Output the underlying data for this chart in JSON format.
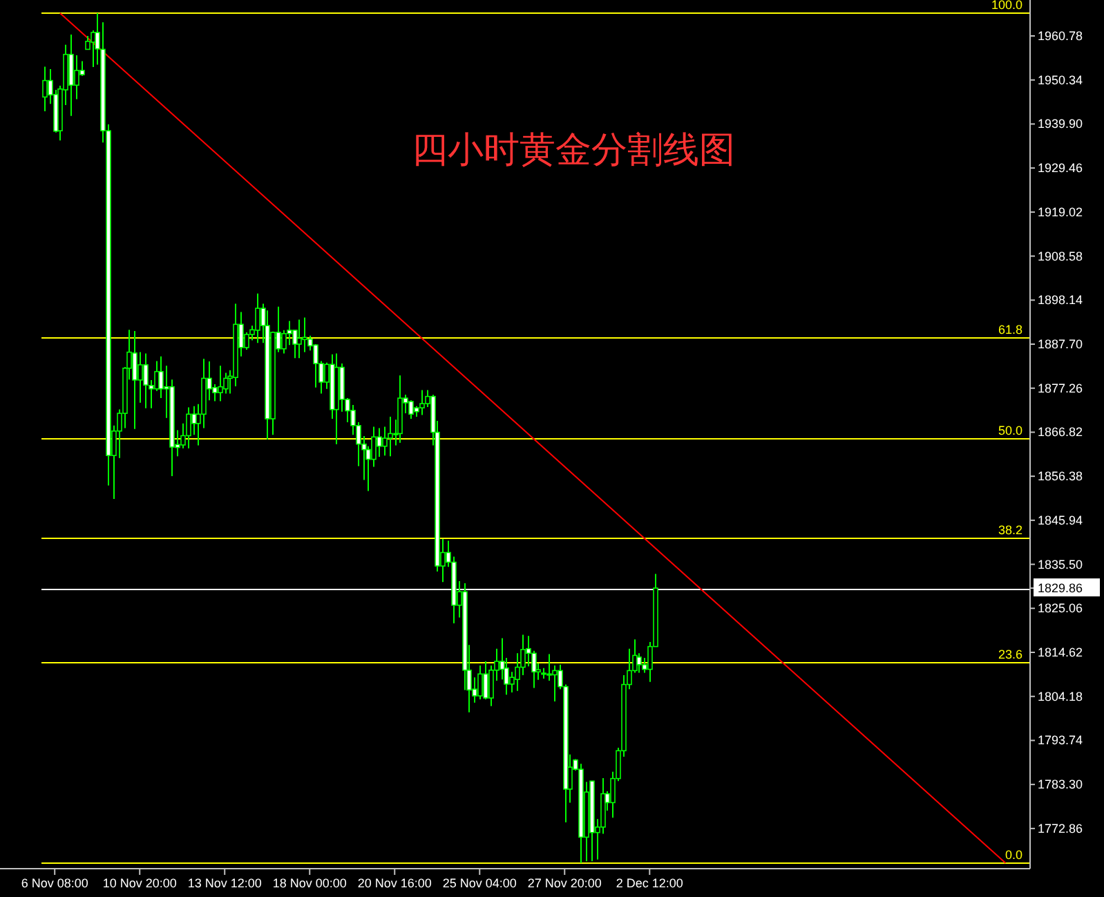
{
  "chart_data": {
    "type": "candlestick",
    "title": "四小时黄金分割线图",
    "color": "#00ff00",
    "categories": [
      null,
      null,
      "6 Nov 08:00",
      null,
      null,
      null,
      null,
      null,
      null,
      null,
      null,
      null,
      null,
      null,
      null,
      null,
      null,
      null,
      "10 Nov 20:00",
      null,
      null,
      null,
      null,
      null,
      null,
      null,
      null,
      null,
      null,
      null,
      null,
      null,
      null,
      null,
      "13 Nov 12:00",
      null,
      null,
      null,
      null,
      null,
      null,
      null,
      null,
      null,
      null,
      null,
      null,
      null,
      null,
      null,
      "18 Nov 00:00",
      null,
      null,
      null,
      null,
      null,
      null,
      null,
      null,
      null,
      null,
      null,
      null,
      null,
      null,
      null,
      "20 Nov 16:00",
      null,
      null,
      null,
      null,
      null,
      null,
      null,
      null,
      null,
      null,
      null,
      null,
      null,
      null,
      null,
      "25 Nov 04:00",
      null,
      null,
      null,
      null,
      null,
      null,
      null,
      null,
      null,
      null,
      null,
      null,
      null,
      null,
      null,
      "27 Nov 20:00",
      null,
      null,
      null,
      null,
      null,
      null,
      null,
      null,
      null,
      null,
      null,
      null,
      null,
      null,
      null,
      "2 Dec 12:00",
      null,
      null,
      null,
      null,
      null,
      null,
      null,
      null,
      null,
      null,
      null,
      null,
      null,
      null,
      null,
      null,
      null,
      null,
      null,
      null,
      null,
      null,
      null,
      null,
      null,
      null,
      null,
      null,
      null,
      null,
      null,
      null,
      null,
      null,
      null,
      null,
      null,
      null,
      null,
      null,
      null,
      null,
      null,
      null,
      null,
      null,
      null,
      null,
      null,
      null,
      null,
      null,
      null,
      null,
      null,
      null,
      null,
      null,
      null,
      null,
      null,
      null,
      null,
      null,
      null,
      null,
      null,
      null,
      null,
      null,
      null
    ],
    "ohlc": [
      [
        1946.3,
        1953.5,
        1942.9,
        1950.2
      ],
      [
        1950.2,
        1952.9,
        1944.7,
        1946.8
      ],
      [
        1946.9,
        1948.0,
        1937.9,
        1938.2
      ],
      [
        1938.3,
        1949.0,
        1936.0,
        1948.2
      ],
      [
        1948.0,
        1958.7,
        1944.4,
        1956.4
      ],
      [
        1956.4,
        1961.1,
        1941.8,
        1949.1
      ],
      [
        1949.1,
        1956.2,
        1945.8,
        1952.6
      ],
      [
        1952.6,
        1954.8,
        1951.3,
        1951.6
      ],
      [
        1957.6,
        1960.8,
        1957.6,
        1959.5
      ],
      [
        1959.3,
        1962.1,
        1953.4,
        1961.6
      ],
      [
        1961.6,
        1966.2,
        1954.0,
        1957.7
      ],
      [
        1957.6,
        1964.0,
        1935.5,
        1938.3
      ],
      [
        1938.3,
        1939.8,
        1854.2,
        1861.3
      ],
      [
        1861.3,
        1868.4,
        1851.0,
        1867.1
      ],
      [
        1867.1,
        1872.2,
        1860.7,
        1871.3
      ],
      [
        1871.3,
        1882.3,
        1867.8,
        1882.0
      ],
      [
        1882.0,
        1891.1,
        1879.3,
        1885.8
      ],
      [
        1885.6,
        1890.8,
        1867.6,
        1879.2
      ],
      [
        1879.2,
        1885.8,
        1873.8,
        1882.8
      ],
      [
        1882.8,
        1885.5,
        1872.5,
        1878.0
      ],
      [
        1877.9,
        1879.2,
        1872.5,
        1877.1
      ],
      [
        1877.1,
        1883.7,
        1876.6,
        1881.2
      ],
      [
        1881.2,
        1884.8,
        1874.9,
        1877.1
      ],
      [
        1877.6,
        1882.6,
        1870.2,
        1877.1
      ],
      [
        1877.6,
        1879.3,
        1856.4,
        1863.3
      ],
      [
        1863.9,
        1867.3,
        1861.1,
        1863.2
      ],
      [
        1863.8,
        1868.9,
        1863.0,
        1866.0
      ],
      [
        1866.0,
        1872.7,
        1863.0,
        1871.1
      ],
      [
        1871.1,
        1873.0,
        1866.2,
        1868.9
      ],
      [
        1868.9,
        1873.5,
        1863.7,
        1871.1
      ],
      [
        1871.1,
        1884.2,
        1867.8,
        1879.6
      ],
      [
        1879.6,
        1883.6,
        1874.4,
        1877.1
      ],
      [
        1877.4,
        1878.2,
        1874.2,
        1876.2
      ],
      [
        1876.2,
        1882.6,
        1874.2,
        1877.6
      ],
      [
        1877.1,
        1880.9,
        1876.0,
        1879.6
      ],
      [
        1879.6,
        1881.5,
        1876.0,
        1880.1
      ],
      [
        1879.8,
        1897.3,
        1877.7,
        1892.4
      ],
      [
        1892.4,
        1895.3,
        1884.8,
        1886.9
      ],
      [
        1886.9,
        1890.5,
        1886.4,
        1890.0
      ],
      [
        1890.0,
        1892.1,
        1888.6,
        1891.1
      ],
      [
        1891.0,
        1899.7,
        1888.0,
        1896.2
      ],
      [
        1896.2,
        1897.3,
        1888.0,
        1892.1
      ],
      [
        1892.1,
        1895.7,
        1865.1,
        1870.0
      ],
      [
        1870.0,
        1890.7,
        1866.2,
        1890.5
      ],
      [
        1890.5,
        1896.6,
        1885.8,
        1886.6
      ],
      [
        1886.6,
        1891.0,
        1885.5,
        1890.2
      ],
      [
        1891.0,
        1893.2,
        1887.5,
        1890.2
      ],
      [
        1891.0,
        1891.0,
        1884.4,
        1887.7
      ],
      [
        1887.7,
        1893.5,
        1884.4,
        1889.1
      ],
      [
        1888.8,
        1894.0,
        1885.8,
        1889.3
      ],
      [
        1888.9,
        1889.7,
        1886.2,
        1887.3
      ],
      [
        1887.5,
        1887.7,
        1877.4,
        1883.1
      ],
      [
        1883.1,
        1883.7,
        1876.0,
        1878.7
      ],
      [
        1878.7,
        1883.3,
        1877.1,
        1882.9
      ],
      [
        1882.9,
        1885.3,
        1870.0,
        1872.2
      ],
      [
        1872.2,
        1885.5,
        1864.0,
        1882.2
      ],
      [
        1882.2,
        1883.1,
        1871.7,
        1874.6
      ],
      [
        1874.6,
        1874.9,
        1869.2,
        1871.9
      ],
      [
        1872.0,
        1873.3,
        1866.2,
        1868.4
      ],
      [
        1868.4,
        1869.2,
        1858.8,
        1864.0
      ],
      [
        1864.0,
        1865.9,
        1855.5,
        1862.7
      ],
      [
        1862.7,
        1863.5,
        1852.9,
        1860.4
      ],
      [
        1860.4,
        1868.1,
        1858.6,
        1865.7
      ],
      [
        1865.7,
        1867.8,
        1861.0,
        1863.5
      ],
      [
        1863.5,
        1868.1,
        1861.3,
        1865.4
      ],
      [
        1865.4,
        1870.5,
        1861.1,
        1866.5
      ],
      [
        1866.5,
        1869.8,
        1863.7,
        1866.3
      ],
      [
        1866.5,
        1880.3,
        1864.3,
        1874.9
      ],
      [
        1874.9,
        1875.7,
        1871.3,
        1873.8
      ],
      [
        1874.1,
        1874.4,
        1870.0,
        1871.1
      ],
      [
        1872.6,
        1873.0,
        1870.5,
        1871.7
      ],
      [
        1872.6,
        1876.8,
        1870.9,
        1873.6
      ],
      [
        1873.6,
        1876.8,
        1872.8,
        1875.3
      ],
      [
        1875.3,
        1875.7,
        1863.7,
        1866.8
      ],
      [
        1866.8,
        1869.5,
        1833.8,
        1835.1
      ],
      [
        1835.1,
        1841.5,
        1831.3,
        1838.3
      ],
      [
        1838.3,
        1841.1,
        1834.9,
        1836.0
      ],
      [
        1836.0,
        1837.3,
        1821.5,
        1825.8
      ],
      [
        1825.8,
        1831.5,
        1822.9,
        1829.0
      ],
      [
        1829.0,
        1831.0,
        1805.7,
        1810.4
      ],
      [
        1810.4,
        1816.4,
        1800.4,
        1805.7
      ],
      [
        1805.9,
        1808.7,
        1802.7,
        1804.3
      ],
      [
        1804.3,
        1811.5,
        1803.5,
        1809.5
      ],
      [
        1809.5,
        1812.5,
        1803.5,
        1803.8
      ],
      [
        1803.8,
        1811.5,
        1801.9,
        1810.4
      ],
      [
        1810.4,
        1815.5,
        1807.9,
        1812.5
      ],
      [
        1812.5,
        1818.0,
        1808.2,
        1810.6
      ],
      [
        1810.9,
        1813.3,
        1804.6,
        1807.1
      ],
      [
        1807.1,
        1810.0,
        1805.1,
        1808.7
      ],
      [
        1808.2,
        1814.4,
        1805.5,
        1811.1
      ],
      [
        1811.1,
        1818.8,
        1809.2,
        1815.3
      ],
      [
        1815.5,
        1818.5,
        1811.3,
        1814.4
      ],
      [
        1814.4,
        1815.0,
        1806.2,
        1810.0
      ],
      [
        1810.0,
        1812.0,
        1808.1,
        1810.5
      ],
      [
        1809.7,
        1810.9,
        1808.4,
        1809.5
      ],
      [
        1809.5,
        1814.2,
        1807.9,
        1809.3
      ],
      [
        1809.3,
        1811.5,
        1803.0,
        1810.3
      ],
      [
        1810.3,
        1811.7,
        1805.9,
        1806.5
      ],
      [
        1806.5,
        1807.0,
        1774.3,
        1782.2
      ],
      [
        1782.2,
        1790.4,
        1779.0,
        1787.4
      ],
      [
        1789.1,
        1789.3,
        1786.6,
        1786.9
      ],
      [
        1786.9,
        1788.2,
        1764.7,
        1770.8
      ],
      [
        1770.8,
        1783.9,
        1765.1,
        1781.5
      ],
      [
        1784.1,
        1784.1,
        1765.1,
        1771.9
      ],
      [
        1771.9,
        1775.1,
        1765.5,
        1773.2
      ],
      [
        1773.2,
        1784.8,
        1771.6,
        1781.1
      ],
      [
        1781.1,
        1781.7,
        1777.1,
        1779.0
      ],
      [
        1779.0,
        1786.3,
        1775.4,
        1784.7
      ],
      [
        1784.7,
        1792.0,
        1784.1,
        1791.3
      ],
      [
        1791.3,
        1809.2,
        1789.9,
        1807.0
      ],
      [
        1807.0,
        1815.5,
        1805.9,
        1810.3
      ],
      [
        1810.3,
        1817.7,
        1809.8,
        1813.9
      ],
      [
        1813.5,
        1814.4,
        1809.8,
        1811.7
      ],
      [
        1811.7,
        1813.3,
        1809.8,
        1810.6
      ],
      [
        1810.6,
        1817.1,
        1807.6,
        1816.0
      ],
      [
        1816.0,
        1833.2,
        1816.0,
        1829.86
      ],
      null,
      null,
      null,
      null,
      null,
      null,
      null,
      null,
      null,
      null,
      null,
      null,
      null,
      null,
      null,
      null,
      null,
      null,
      null,
      null,
      null,
      null,
      null,
      null,
      null,
      null,
      null,
      null,
      null,
      null,
      null,
      null,
      null,
      null,
      null,
      null,
      null,
      null,
      null,
      null,
      null,
      null,
      null,
      null,
      null,
      null,
      null,
      null,
      null,
      null,
      null,
      null,
      null,
      null,
      null,
      null,
      null,
      null,
      null,
      null,
      null,
      null,
      null,
      null,
      null,
      null,
      null,
      null,
      null,
      null
    ],
    "series": [
      {
        "type": "line",
        "color": "#ff0000",
        "values": [
          null,
          null,
          null,
          1966.2,
          null,
          null,
          null,
          null,
          null,
          null,
          null,
          null,
          null,
          null,
          null,
          null,
          null,
          null,
          null,
          null,
          null,
          null,
          null,
          null,
          null,
          null,
          null,
          null,
          null,
          null,
          null,
          null,
          null,
          null,
          null,
          null,
          null,
          null,
          null,
          null,
          null,
          null,
          null,
          null,
          null,
          null,
          null,
          null,
          null,
          null,
          null,
          null,
          null,
          null,
          null,
          null,
          null,
          null,
          null,
          null,
          null,
          null,
          null,
          null,
          null,
          null,
          null,
          null,
          null,
          null,
          null,
          null,
          null,
          null,
          null,
          null,
          null,
          null,
          null,
          null,
          null,
          null,
          null,
          null,
          null,
          null,
          null,
          null,
          null,
          null,
          null,
          null,
          null,
          null,
          null,
          null,
          null,
          null,
          null,
          null,
          null,
          null,
          null,
          null,
          null,
          null,
          null,
          null,
          null,
          null,
          null,
          null,
          null,
          null,
          null,
          null,
          null,
          null,
          null,
          null,
          null,
          null,
          null,
          null,
          null,
          null,
          null,
          null,
          null,
          null,
          null,
          null,
          null,
          null,
          null,
          null,
          null,
          null,
          null,
          null,
          null,
          null,
          null,
          null,
          null,
          null,
          null,
          null,
          null,
          null,
          null,
          null,
          null,
          null,
          null,
          null,
          null,
          null,
          null,
          null,
          null,
          null,
          null,
          null,
          null,
          null,
          null,
          null,
          null,
          null,
          null,
          null,
          null,
          null,
          null,
          null,
          null,
          null,
          null,
          null,
          null,
          1764.7,
          null,
          null,
          null,
          null
        ]
      }
    ],
    "ylim": [
      1763.5,
      1969.3
    ],
    "yticks": [
      {
        "value": 1960.78,
        "label": "1960.78"
      },
      {
        "value": 1950.34,
        "label": "1950.34"
      },
      {
        "value": 1939.9,
        "label": "1939.90"
      },
      {
        "value": 1929.46,
        "label": "1929.46"
      },
      {
        "value": 1919.02,
        "label": "1919.02"
      },
      {
        "value": 1908.58,
        "label": "1908.58"
      },
      {
        "value": 1898.14,
        "label": "1898.14"
      },
      {
        "value": 1887.7,
        "label": "1887.70"
      },
      {
        "value": 1877.26,
        "label": "1877.26"
      },
      {
        "value": 1866.82,
        "label": "1866.82"
      },
      {
        "value": 1856.38,
        "label": "1856.38"
      },
      {
        "value": 1845.94,
        "label": "1845.94"
      },
      {
        "value": 1835.5,
        "label": "1835.50"
      },
      {
        "value": 1829.86,
        "label": "1829.86"
      },
      {
        "value": 1825.06,
        "label": "1825.06"
      },
      {
        "value": 1814.62,
        "label": "1814.62"
      },
      {
        "value": 1804.18,
        "label": "1804.18"
      },
      {
        "value": 1793.74,
        "label": "1793.74"
      },
      {
        "value": 1783.3,
        "label": "1783.30"
      },
      {
        "value": 1772.86,
        "label": "1772.86"
      }
    ],
    "annotations": [
      {
        "text": "100.0",
        "y": 1966.2
      },
      {
        "text": "61.8",
        "y": 1889.2
      },
      {
        "text": "50.0",
        "y": 1865.5
      },
      {
        "text": "38.2",
        "y": 1841.7
      },
      {
        "text": "23.6",
        "y": 1812.3
      },
      {
        "text": "0.0",
        "y": 1764.7
      }
    ],
    "ref_lines": [
      {
        "axis": "y",
        "value": 1966.2,
        "color": "#ffff00"
      },
      {
        "axis": "y",
        "value": 1889.2,
        "color": "#ffff00"
      },
      {
        "axis": "y",
        "value": 1865.5,
        "color": "#ffff00"
      },
      {
        "axis": "y",
        "value": 1841.7,
        "color": "#ffff00"
      },
      {
        "axis": "y",
        "value": 1812.3,
        "color": "#ffff00"
      },
      {
        "axis": "y",
        "value": 1764.7,
        "color": "#ffff00"
      },
      {
        "axis": "y",
        "value": 1829.86,
        "color": "#ffffff"
      }
    ]
  }
}
